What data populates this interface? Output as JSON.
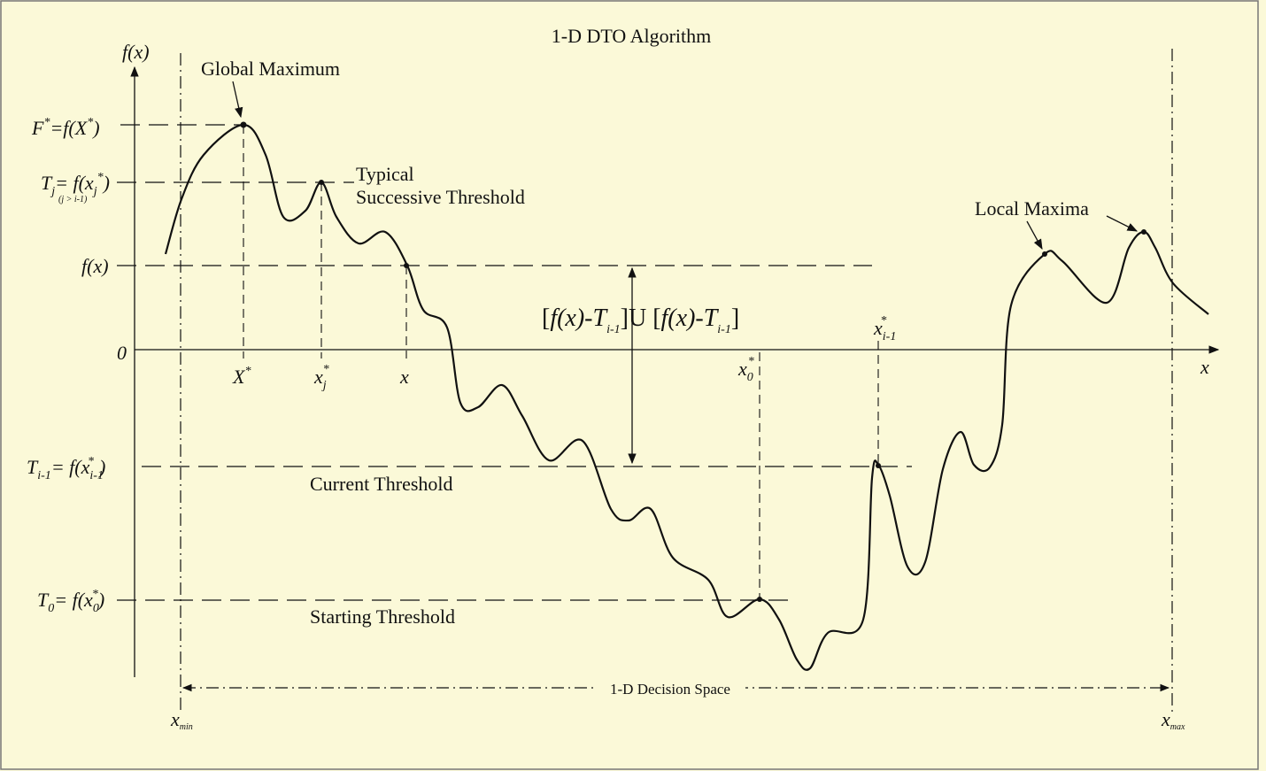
{
  "title": "1-D DTO Algorithm",
  "y_axis_label": "f(x)",
  "x_axis_label": "x",
  "origin_label": "0",
  "annotations": {
    "global_maximum": "Global Maximum",
    "typical_1": "Typical",
    "typical_2": "Successive Threshold",
    "local_maxima": "Local Maxima",
    "current_threshold": "Current Threshold",
    "starting_threshold": "Starting Threshold",
    "decision_space": "1-D Decision Space",
    "union": [
      "[",
      "f(x)-T",
      "i-1",
      "]U [",
      "f(x)-T",
      "i-1",
      "]"
    ]
  },
  "left_labels": {
    "global": [
      "F",
      "*",
      "=f(X",
      "*",
      ")"
    ],
    "typical": [
      "T",
      "j",
      "= f(x",
      "j",
      "*",
      ")",
      "(j > i-1)"
    ],
    "fx": [
      "f(x)"
    ],
    "current": [
      "T",
      "i-1",
      "= f(x",
      "i-1",
      "*",
      ")"
    ],
    "starting": [
      "T",
      "0",
      "= f(x",
      "0",
      "*",
      ")"
    ]
  },
  "x_labels": {
    "X_star": [
      "X",
      "*"
    ],
    "x_j": [
      "x",
      "j",
      "*"
    ],
    "x": [
      "x"
    ],
    "x_0": [
      "x",
      "0",
      "*"
    ],
    "x_i1": [
      "x",
      "i-1",
      "*"
    ],
    "x_min": [
      "x",
      "min"
    ],
    "x_max": [
      "x",
      "max"
    ]
  }
}
